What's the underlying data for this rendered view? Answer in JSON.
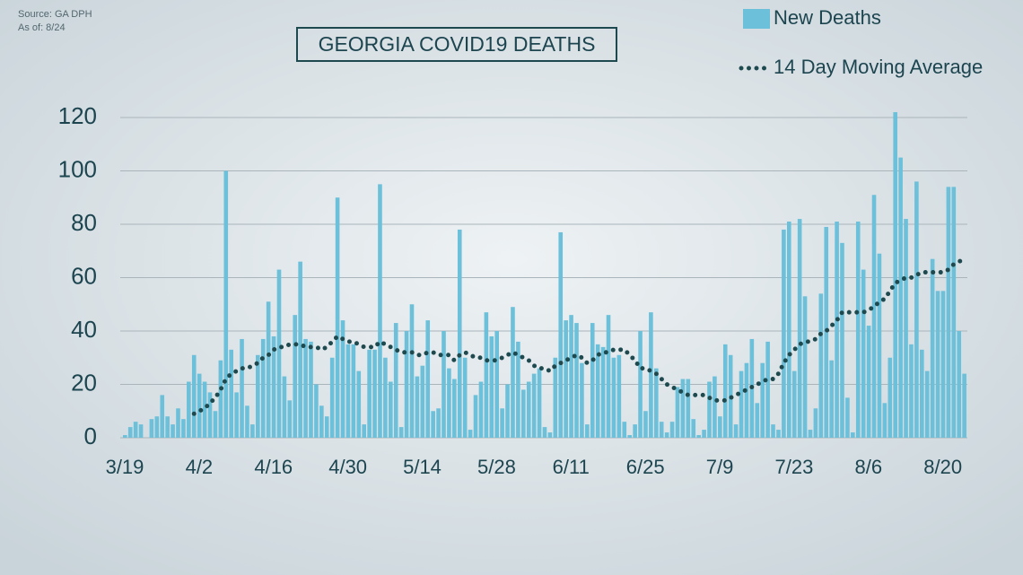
{
  "chart_data": {
    "type": "bar_line",
    "title": "GEORGIA COVID19 DEATHS",
    "source": "Source: GA DPH",
    "as_of": "As of: 8/24",
    "categories": [
      "3/19",
      null,
      null,
      null,
      null,
      null,
      null,
      null,
      null,
      null,
      null,
      null,
      null,
      null,
      "4/2",
      null,
      null,
      null,
      null,
      null,
      null,
      null,
      null,
      null,
      null,
      null,
      null,
      null,
      "4/16",
      null,
      null,
      null,
      null,
      null,
      null,
      null,
      null,
      null,
      null,
      null,
      null,
      null,
      "4/30",
      null,
      null,
      null,
      null,
      null,
      null,
      null,
      null,
      null,
      null,
      null,
      null,
      null,
      "5/14",
      null,
      null,
      null,
      null,
      null,
      null,
      null,
      null,
      null,
      null,
      null,
      null,
      null,
      "5/28",
      null,
      null,
      null,
      null,
      null,
      null,
      null,
      null,
      null,
      null,
      null,
      null,
      null,
      "6/11",
      null,
      null,
      null,
      null,
      null,
      null,
      null,
      null,
      null,
      null,
      null,
      null,
      null,
      "6/25",
      null,
      null,
      null,
      null,
      null,
      null,
      null,
      null,
      null,
      null,
      null,
      null,
      null,
      "7/9",
      null,
      null,
      null,
      null,
      null,
      null,
      null,
      null,
      null,
      null,
      null,
      null,
      null,
      "7/23",
      null,
      null,
      null,
      null,
      null,
      null,
      null,
      null,
      null,
      null,
      null,
      null,
      null,
      "8/6",
      null,
      null,
      null,
      null,
      null,
      null,
      null,
      null,
      null,
      null,
      null,
      null,
      null,
      "8/20",
      null,
      null,
      null,
      null
    ],
    "series": [
      {
        "name": "New Deaths",
        "kind": "bar",
        "color": "#6cc0d9",
        "values": [
          1,
          4,
          6,
          5,
          0,
          7,
          8,
          16,
          8,
          5,
          11,
          7,
          21,
          31,
          24,
          21,
          17,
          10,
          29,
          100,
          33,
          17,
          37,
          12,
          5,
          31,
          37,
          51,
          38,
          63,
          23,
          14,
          46,
          66,
          37,
          36,
          20,
          12,
          8,
          30,
          90,
          44,
          35,
          35,
          25,
          5,
          33,
          33,
          95,
          30,
          21,
          43,
          4,
          40,
          50,
          23,
          27,
          44,
          10,
          11,
          40,
          26,
          22,
          78,
          30,
          3,
          16,
          21,
          47,
          38,
          40,
          11,
          20,
          49,
          36,
          18,
          21,
          24,
          26,
          4,
          2,
          30,
          77,
          44,
          46,
          43,
          28,
          5,
          43,
          35,
          34,
          46,
          30,
          31,
          6,
          1,
          5,
          40,
          10,
          47,
          26,
          6,
          2,
          6,
          19,
          22,
          22,
          7,
          1,
          3,
          21,
          23,
          8,
          35,
          31,
          5,
          25,
          28,
          37,
          13,
          28,
          36,
          5,
          3,
          78,
          81,
          25,
          82,
          53,
          3,
          11,
          54,
          79,
          29,
          81,
          73,
          15,
          2,
          81,
          63,
          42,
          91,
          69,
          13,
          30,
          122,
          105,
          82,
          35,
          96,
          33,
          25,
          67,
          55,
          55,
          94,
          94,
          40,
          24
        ]
      },
      {
        "name": "14 Day Moving Average",
        "kind": "line",
        "color": "#1e4a4f",
        "values": [
          null,
          null,
          null,
          null,
          null,
          null,
          null,
          null,
          null,
          null,
          null,
          null,
          null,
          9,
          10,
          11,
          13,
          15,
          18,
          22,
          24,
          25,
          26,
          26,
          27,
          28,
          30,
          31,
          33,
          34,
          34,
          35,
          35,
          35,
          34,
          34,
          34,
          33,
          34,
          36,
          38,
          37,
          36,
          36,
          35,
          34,
          34,
          34,
          36,
          35,
          34,
          33,
          32,
          32,
          32,
          31,
          31,
          32,
          32,
          31,
          31,
          31,
          29,
          31,
          32,
          31,
          30,
          30,
          29,
          29,
          29,
          30,
          31,
          32,
          31,
          30,
          29,
          27,
          26,
          26,
          25,
          27,
          28,
          29,
          30,
          31,
          30,
          28,
          29,
          31,
          32,
          32,
          33,
          33,
          33,
          31,
          29,
          26,
          26,
          25,
          24,
          22,
          20,
          19,
          18,
          17,
          16,
          16,
          16,
          16,
          15,
          14,
          14,
          14,
          15,
          16,
          17,
          18,
          19,
          20,
          21,
          22,
          22,
          24,
          28,
          31,
          33,
          35,
          36,
          36,
          37,
          39,
          40,
          42,
          44,
          47,
          47,
          47,
          47,
          47,
          48,
          49,
          51,
          52,
          55,
          58,
          59,
          60,
          60,
          61,
          62,
          62,
          62,
          62,
          62,
          63,
          65,
          66,
          67
        ]
      }
    ],
    "ylim": [
      0,
      120
    ],
    "yticks": [
      0,
      20,
      40,
      60,
      80,
      100,
      120
    ],
    "grid": true
  }
}
